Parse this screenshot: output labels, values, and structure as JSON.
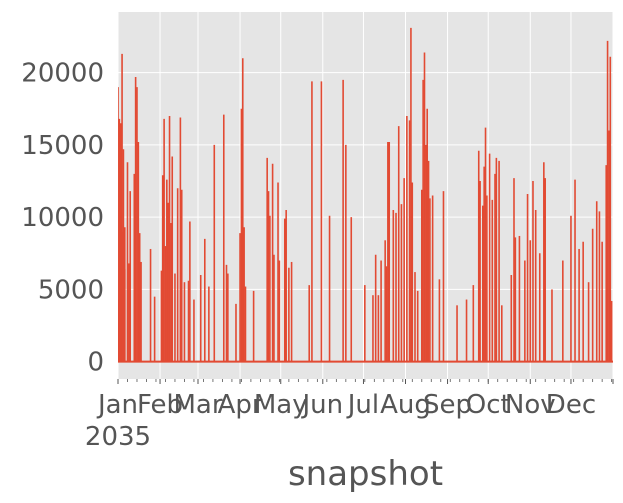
{
  "chart_data": {
    "type": "line",
    "title": "",
    "xlabel": "snapshot",
    "ylabel": "",
    "grid": true,
    "legend": "none",
    "colors": {
      "line": "#e24a33",
      "panel": "#e5e5e5",
      "grid": "#ffffff",
      "text": "#555555"
    },
    "y_ticks": [
      0,
      5000,
      10000,
      15000,
      20000
    ],
    "y_tick_labels": [
      "0",
      "5000",
      "10000",
      "15000",
      "20000"
    ],
    "ylim": [
      -1200,
      24200
    ],
    "xlim": [
      "2035-01-01",
      "2036-01-01"
    ],
    "x_month_ticks": [
      "2035-01-01",
      "2035-02-01",
      "2035-03-01",
      "2035-04-01",
      "2035-05-01",
      "2035-06-01",
      "2035-07-01",
      "2035-08-01",
      "2035-09-01",
      "2035-10-01",
      "2035-11-01",
      "2035-12-01",
      "2036-01-01"
    ],
    "x_tick_labels": [
      "Jan",
      "Feb",
      "Mar",
      "Apr",
      "May",
      "Jun",
      "Jul",
      "Aug",
      "Sep",
      "Oct",
      "Nov",
      "Dec",
      ""
    ],
    "x_year_label": "2035",
    "series": [
      {
        "peaks": [
          [
            "2035-01-01",
            19000
          ],
          [
            "2035-01-02",
            4300
          ],
          [
            "2035-01-02",
            16800
          ],
          [
            "2035-01-03",
            5800
          ],
          [
            "2035-01-03",
            16500
          ],
          [
            "2035-01-04",
            21300
          ],
          [
            "2035-01-05",
            9000
          ],
          [
            "2035-01-05",
            14700
          ],
          [
            "2035-01-06",
            6400
          ],
          [
            "2035-01-06",
            9300
          ],
          [
            "2035-01-08",
            13800
          ],
          [
            "2035-01-09",
            6800
          ],
          [
            "2035-01-10",
            11800
          ],
          [
            "2035-01-13",
            13000
          ],
          [
            "2035-01-14",
            19700
          ],
          [
            "2035-01-15",
            19000
          ],
          [
            "2035-01-16",
            15200
          ],
          [
            "2035-01-17",
            8900
          ],
          [
            "2035-01-18",
            6900
          ],
          [
            "2035-01-25",
            7800
          ],
          [
            "2035-01-28",
            4500
          ],
          [
            "2035-02-02",
            6300
          ],
          [
            "2035-02-03",
            12900
          ],
          [
            "2035-02-04",
            16800
          ],
          [
            "2035-02-05",
            8000
          ],
          [
            "2035-02-06",
            12600
          ],
          [
            "2035-02-07",
            11000
          ],
          [
            "2035-02-08",
            17000
          ],
          [
            "2035-02-09",
            9600
          ],
          [
            "2035-02-10",
            14200
          ],
          [
            "2035-02-12",
            6100
          ],
          [
            "2035-02-14",
            12000
          ],
          [
            "2035-02-16",
            16900
          ],
          [
            "2035-02-17",
            11900
          ],
          [
            "2035-02-19",
            5500
          ],
          [
            "2035-02-22",
            5600
          ],
          [
            "2035-02-23",
            9700
          ],
          [
            "2035-02-26",
            4300
          ],
          [
            "2035-03-03",
            6000
          ],
          [
            "2035-03-06",
            8500
          ],
          [
            "2035-03-09",
            5200
          ],
          [
            "2035-03-13",
            15000
          ],
          [
            "2035-03-20",
            17100
          ],
          [
            "2035-03-22",
            6700
          ],
          [
            "2035-03-23",
            6100
          ],
          [
            "2035-03-29",
            4000
          ],
          [
            "2035-04-01",
            8900
          ],
          [
            "2035-04-02",
            17500
          ],
          [
            "2035-04-03",
            21000
          ],
          [
            "2035-04-04",
            9300
          ],
          [
            "2035-04-05",
            5200
          ],
          [
            "2035-04-11",
            4900
          ],
          [
            "2035-04-21",
            14100
          ],
          [
            "2035-04-22",
            11800
          ],
          [
            "2035-04-23",
            10100
          ],
          [
            "2035-04-25",
            13700
          ],
          [
            "2035-04-26",
            7400
          ],
          [
            "2035-04-29",
            12400
          ],
          [
            "2035-04-30",
            7000
          ],
          [
            "2035-05-04",
            9900
          ],
          [
            "2035-05-05",
            10500
          ],
          [
            "2035-05-07",
            6500
          ],
          [
            "2035-05-09",
            6900
          ],
          [
            "2035-05-22",
            5300
          ],
          [
            "2035-05-24",
            19400
          ],
          [
            "2035-05-31",
            19400
          ],
          [
            "2035-06-06",
            10100
          ],
          [
            "2035-06-16",
            19500
          ],
          [
            "2035-06-18",
            15000
          ],
          [
            "2035-06-22",
            10000
          ],
          [
            "2035-07-02",
            5300
          ],
          [
            "2035-07-08",
            4600
          ],
          [
            "2035-07-10",
            7400
          ],
          [
            "2035-07-12",
            4600
          ],
          [
            "2035-07-14",
            7000
          ],
          [
            "2035-07-17",
            8400
          ],
          [
            "2035-07-18",
            6600
          ],
          [
            "2035-07-19",
            15200
          ],
          [
            "2035-07-20",
            15200
          ],
          [
            "2035-07-23",
            10500
          ],
          [
            "2035-07-25",
            10300
          ],
          [
            "2035-07-27",
            16300
          ],
          [
            "2035-07-29",
            10900
          ],
          [
            "2035-07-31",
            12700
          ],
          [
            "2035-08-02",
            17000
          ],
          [
            "2035-08-04",
            16700
          ],
          [
            "2035-08-05",
            23100
          ],
          [
            "2035-08-06",
            12400
          ],
          [
            "2035-08-08",
            6200
          ],
          [
            "2035-08-10",
            4900
          ],
          [
            "2035-08-13",
            11900
          ],
          [
            "2035-08-14",
            19500
          ],
          [
            "2035-08-15",
            21400
          ],
          [
            "2035-08-16",
            15000
          ],
          [
            "2035-08-17",
            17500
          ],
          [
            "2035-08-18",
            13900
          ],
          [
            "2035-08-19",
            11300
          ],
          [
            "2035-08-21",
            11500
          ],
          [
            "2035-08-26",
            5700
          ],
          [
            "2035-08-29",
            11800
          ],
          [
            "2035-09-08",
            3900
          ],
          [
            "2035-09-15",
            4300
          ],
          [
            "2035-09-20",
            5300
          ],
          [
            "2035-09-24",
            14600
          ],
          [
            "2035-09-25",
            12500
          ],
          [
            "2035-09-27",
            10800
          ],
          [
            "2035-09-28",
            13500
          ],
          [
            "2035-09-29",
            16200
          ],
          [
            "2035-09-30",
            11500
          ],
          [
            "2035-10-02",
            14400
          ],
          [
            "2035-10-04",
            11200
          ],
          [
            "2035-10-06",
            13000
          ],
          [
            "2035-10-07",
            14100
          ],
          [
            "2035-10-09",
            13900
          ],
          [
            "2035-10-11",
            3900
          ],
          [
            "2035-10-18",
            6000
          ],
          [
            "2035-10-20",
            12700
          ],
          [
            "2035-10-21",
            8600
          ],
          [
            "2035-10-24",
            8700
          ],
          [
            "2035-10-28",
            7000
          ],
          [
            "2035-10-30",
            11600
          ],
          [
            "2035-11-01",
            8400
          ],
          [
            "2035-11-03",
            12500
          ],
          [
            "2035-11-05",
            10500
          ],
          [
            "2035-11-08",
            7500
          ],
          [
            "2035-11-11",
            13800
          ],
          [
            "2035-11-12",
            12700
          ],
          [
            "2035-11-17",
            5000
          ],
          [
            "2035-11-25",
            7000
          ],
          [
            "2035-12-01",
            10100
          ],
          [
            "2035-12-04",
            12600
          ],
          [
            "2035-12-07",
            7800
          ],
          [
            "2035-12-10",
            8300
          ],
          [
            "2035-12-14",
            5500
          ],
          [
            "2035-12-17",
            9200
          ],
          [
            "2035-12-20",
            11100
          ],
          [
            "2035-12-22",
            10400
          ],
          [
            "2035-12-24",
            8300
          ],
          [
            "2035-12-27",
            13600
          ],
          [
            "2035-12-28",
            22200
          ],
          [
            "2035-12-29",
            16000
          ],
          [
            "2035-12-30",
            21100
          ],
          [
            "2035-12-31",
            4200
          ]
        ]
      }
    ]
  }
}
